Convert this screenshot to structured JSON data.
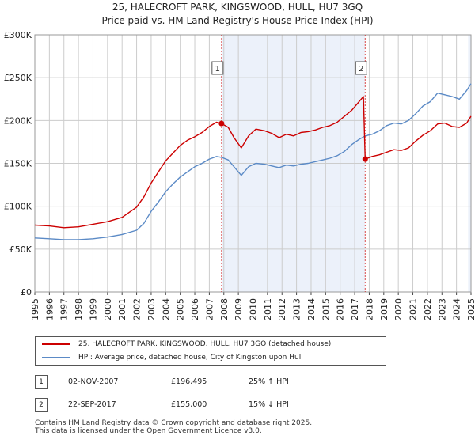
{
  "title_line1": "25, HALECROFT PARK, KINGSWOOD, HULL, HU7 3GQ",
  "title_line2": "Price paid vs. HM Land Registry's House Price Index (HPI)",
  "colors": {
    "property": "#cc0000",
    "hpi": "#5b8ac6",
    "marker_line": "#cc0000",
    "shade": "#dde6f5",
    "grid": "#cccccc"
  },
  "legend": {
    "property_label": "25, HALECROFT PARK, KINGSWOOD, HULL, HU7 3GQ (detached house)",
    "hpi_label": "HPI: Average price, detached house, City of Kingston upon Hull"
  },
  "transactions": [
    {
      "num": "1",
      "date": "02-NOV-2007",
      "price": "£196,495",
      "hpi": "25% ↑ HPI"
    },
    {
      "num": "2",
      "date": "22-SEP-2017",
      "price": "£155,000",
      "hpi": "15% ↓ HPI"
    }
  ],
  "footer": {
    "line1": "Contains HM Land Registry data © Crown copyright and database right 2025.",
    "line2": "This data is licensed under the Open Government Licence v3.0."
  },
  "chart_data": {
    "type": "line",
    "title": "25, HALECROFT PARK, KINGSWOOD, HULL, HU7 3GQ",
    "subtitle": "Price paid vs. HM Land Registry's House Price Index (HPI)",
    "xlabel": "",
    "ylabel": "",
    "xlim": [
      1995,
      2025
    ],
    "ylim": [
      0,
      300000
    ],
    "x_ticks": [
      "1995",
      "1996",
      "1997",
      "1998",
      "1999",
      "2000",
      "2001",
      "2002",
      "2003",
      "2004",
      "2005",
      "2006",
      "2007",
      "2008",
      "2009",
      "2010",
      "2011",
      "2012",
      "2013",
      "2014",
      "2015",
      "2016",
      "2017",
      "2018",
      "2019",
      "2020",
      "2021",
      "2022",
      "2023",
      "2024",
      "2025"
    ],
    "y_ticks": [
      {
        "value": 0,
        "label": "£0"
      },
      {
        "value": 50000,
        "label": "£50K"
      },
      {
        "value": 100000,
        "label": "£100K"
      },
      {
        "value": 150000,
        "label": "£150K"
      },
      {
        "value": 200000,
        "label": "£200K"
      },
      {
        "value": 250000,
        "label": "£250K"
      },
      {
        "value": 300000,
        "label": "£300K"
      }
    ],
    "grid": true,
    "shaded_period": [
      2007.84,
      2017.72
    ],
    "markers": [
      {
        "label": "1",
        "x": 2007.84,
        "y": 196495
      },
      {
        "label": "2",
        "x": 2017.72,
        "y": 155000
      }
    ],
    "series": [
      {
        "name": "25, HALECROFT PARK, KINGSWOOD, HULL, HU7 3GQ (detached house)",
        "color": "#cc0000",
        "x": [
          1995,
          1996,
          1997,
          1998,
          1999,
          2000,
          2001,
          2002,
          2002.5,
          2003,
          2003.5,
          2004,
          2004.5,
          2005,
          2005.5,
          2006,
          2006.5,
          2007,
          2007.5,
          2007.84,
          2008.3,
          2008.7,
          2009.2,
          2009.7,
          2010.2,
          2010.8,
          2011.3,
          2011.8,
          2012.3,
          2012.8,
          2013.3,
          2013.8,
          2014.3,
          2014.8,
          2015.3,
          2015.8,
          2016.3,
          2016.8,
          2017.3,
          2017.6,
          2017.72,
          2018.2,
          2018.7,
          2019.2,
          2019.7,
          2020.2,
          2020.7,
          2021.2,
          2021.7,
          2022.2,
          2022.7,
          2023.2,
          2023.7,
          2024.2,
          2024.7,
          2025
        ],
        "y": [
          78000,
          77000,
          75000,
          76000,
          79000,
          82000,
          87000,
          99000,
          111000,
          127000,
          140000,
          153000,
          162000,
          171000,
          177000,
          181000,
          186000,
          193000,
          198000,
          196495,
          192000,
          180000,
          168000,
          182000,
          190000,
          188000,
          185000,
          180000,
          184000,
          182000,
          186000,
          187000,
          189000,
          192000,
          194000,
          198000,
          205000,
          212000,
          222000,
          228000,
          155000,
          158000,
          160000,
          163000,
          166000,
          165000,
          168000,
          176000,
          183000,
          188000,
          196000,
          197000,
          193000,
          192000,
          197000,
          205000
        ]
      },
      {
        "name": "HPI: Average price, detached house, City of Kingston upon Hull",
        "color": "#5b8ac6",
        "x": [
          1995,
          1996,
          1997,
          1998,
          1999,
          2000,
          2001,
          2002,
          2002.5,
          2003,
          2003.5,
          2004,
          2004.5,
          2005,
          2005.5,
          2006,
          2006.5,
          2007,
          2007.5,
          2007.84,
          2008.3,
          2008.7,
          2009.2,
          2009.7,
          2010.2,
          2010.8,
          2011.3,
          2011.8,
          2012.3,
          2012.8,
          2013.3,
          2013.8,
          2014.3,
          2014.8,
          2015.3,
          2015.8,
          2016.3,
          2016.8,
          2017.3,
          2017.72,
          2018.2,
          2018.7,
          2019.2,
          2019.7,
          2020.2,
          2020.7,
          2021.2,
          2021.7,
          2022.2,
          2022.7,
          2023.2,
          2023.7,
          2024.2,
          2024.7,
          2025
        ],
        "y": [
          63000,
          62000,
          61000,
          61000,
          62000,
          64000,
          67000,
          72000,
          80000,
          94000,
          105000,
          117000,
          126000,
          134000,
          140000,
          146000,
          150000,
          155000,
          158000,
          157000,
          154000,
          146000,
          136000,
          146000,
          150000,
          149000,
          147000,
          145000,
          148000,
          147000,
          149000,
          150000,
          152000,
          154000,
          156000,
          159000,
          164000,
          172000,
          178000,
          182000,
          184000,
          188000,
          194000,
          197000,
          196000,
          200000,
          208000,
          217000,
          222000,
          232000,
          230000,
          228000,
          225000,
          235000,
          243000
        ]
      }
    ]
  }
}
